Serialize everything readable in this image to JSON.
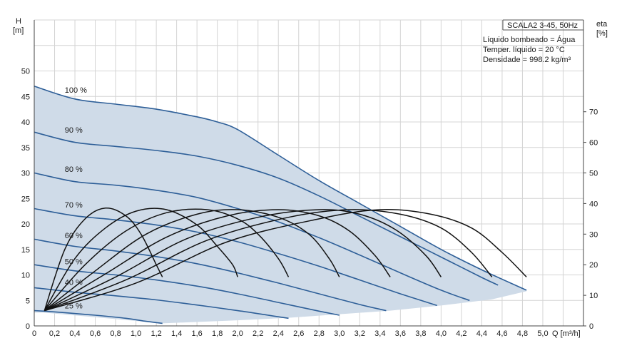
{
  "chart_data": {
    "type": "line",
    "title": "SCALA2 3-45, 50Hz",
    "notes": [
      "Líquido bombeado = Água",
      "Temper. líquido = 20 °C",
      "Densidade = 998.2 kg/m³"
    ],
    "xlabel": "Q [m³/h]",
    "ylabel_left": "H [m]",
    "ylabel_left_parts": [
      "H",
      "[m]"
    ],
    "ylabel_right": "eta [%]",
    "ylabel_right_parts": [
      "eta",
      "[%]"
    ],
    "xlim": [
      0,
      5.4
    ],
    "ylim_left": [
      0,
      60
    ],
    "ylim_right": [
      0,
      100
    ],
    "x_ticks": [
      "0",
      "0,2",
      "0,4",
      "0,6",
      "0,8",
      "1,0",
      "1,2",
      "1,4",
      "1,6",
      "1,8",
      "2,0",
      "2,2",
      "2,4",
      "2,6",
      "2,8",
      "3,0",
      "3,2",
      "3,4",
      "3,6",
      "3,8",
      "4,0",
      "4,2",
      "4,4",
      "4,6",
      "4,8",
      "5,0"
    ],
    "y_ticks_left": [
      "0",
      "5",
      "10",
      "15",
      "20",
      "25",
      "30",
      "35",
      "40",
      "45",
      "50"
    ],
    "y_ticks_right": [
      "0",
      "10",
      "20",
      "30",
      "40",
      "50",
      "60",
      "70"
    ],
    "grid": true,
    "colors": {
      "head": "#2e5f98",
      "efficiency": "#111111",
      "area": "#cfdbe8",
      "grid": "#d4d4d4"
    },
    "head_series": [
      {
        "name": "100 %",
        "label_at": [
          0.3,
          45.3
        ],
        "x": [
          0,
          0.4,
          0.8,
          1.2,
          1.6,
          1.8,
          2.0,
          2.4,
          2.8,
          3.2,
          3.6,
          4.0,
          4.4,
          4.84
        ],
        "y": [
          47,
          44.5,
          43.5,
          42.5,
          41,
          40,
          38.5,
          33.5,
          28.5,
          24,
          19.5,
          15,
          11,
          7
        ]
      },
      {
        "name": "90 %",
        "label_at": [
          0.3,
          37.5
        ],
        "x": [
          0,
          0.4,
          0.8,
          1.2,
          1.6,
          2.0,
          2.4,
          2.8,
          3.2,
          3.6,
          4.0,
          4.4,
          4.56
        ],
        "y": [
          38,
          36,
          35.2,
          34.4,
          33.3,
          31.5,
          29,
          25.5,
          21.5,
          17.5,
          13.5,
          9.5,
          8
        ]
      },
      {
        "name": "80 %",
        "label_at": [
          0.3,
          29.8
        ],
        "x": [
          0,
          0.4,
          0.8,
          1.2,
          1.6,
          2.0,
          2.4,
          2.8,
          3.2,
          3.6,
          4.0,
          4.28
        ],
        "y": [
          30,
          28.3,
          27.6,
          26.6,
          25.2,
          23,
          20.4,
          17.3,
          13.9,
          10.4,
          7,
          5
        ]
      },
      {
        "name": "70 %",
        "label_at": [
          0.3,
          22.8
        ],
        "x": [
          0,
          0.4,
          0.8,
          1.2,
          1.6,
          2.0,
          2.4,
          2.8,
          3.2,
          3.6,
          3.96
        ],
        "y": [
          23,
          21.6,
          20.8,
          19.8,
          18.4,
          16.5,
          14.2,
          11.7,
          9,
          6.3,
          4
        ]
      },
      {
        "name": "60 %",
        "label_at": [
          0.3,
          16.8
        ],
        "x": [
          0,
          0.4,
          0.8,
          1.2,
          1.6,
          2.0,
          2.4,
          2.8,
          3.2,
          3.46
        ],
        "y": [
          17,
          15.6,
          14.7,
          13.6,
          12.2,
          10.4,
          8.4,
          6.3,
          4.2,
          3
        ]
      },
      {
        "name": "50 %",
        "label_at": [
          0.3,
          11.7
        ],
        "x": [
          0,
          0.4,
          0.8,
          1.2,
          1.6,
          2.0,
          2.4,
          2.8,
          3.0
        ],
        "y": [
          12,
          10.8,
          10,
          9,
          7.8,
          6.3,
          4.6,
          2.9,
          2.1
        ]
      },
      {
        "name": "40 %",
        "label_at": [
          0.3,
          7.6
        ],
        "x": [
          0,
          0.4,
          0.8,
          1.2,
          1.6,
          2.0,
          2.3,
          2.5
        ],
        "y": [
          7.5,
          6.6,
          5.9,
          5.1,
          4.1,
          3.0,
          2.1,
          1.5
        ]
      },
      {
        "name": "25 %",
        "label_at": [
          0.3,
          3.0
        ],
        "x": [
          0,
          0.3,
          0.6,
          0.9,
          1.1,
          1.26
        ],
        "y": [
          3,
          2.6,
          2.1,
          1.5,
          0.9,
          0.5
        ]
      }
    ],
    "envelope_bottom": {
      "x": [
        0.1,
        1.26,
        2.0,
        2.5,
        3.0,
        3.5,
        4.0,
        4.5,
        4.84
      ],
      "y": [
        2.6,
        0.5,
        1.1,
        1.6,
        2.3,
        3.0,
        4.0,
        5.2,
        6.8
      ]
    },
    "efficiency_series": [
      {
        "x": [
          0.1,
          0.3,
          0.5,
          0.7,
          0.9,
          1.05,
          1.2,
          1.26
        ],
        "y": [
          5,
          25,
          35,
          38.5,
          36,
          30,
          20,
          16
        ]
      },
      {
        "x": [
          0.1,
          0.4,
          0.7,
          1.0,
          1.3,
          1.6,
          1.8,
          1.95,
          2.0
        ],
        "y": [
          5,
          22,
          32,
          37.5,
          38,
          33,
          26,
          20,
          16
        ]
      },
      {
        "x": [
          0.1,
          0.5,
          0.9,
          1.3,
          1.7,
          2.0,
          2.2,
          2.4,
          2.5
        ],
        "y": [
          5,
          20,
          31,
          37,
          38,
          35,
          30,
          22,
          16
        ]
      },
      {
        "x": [
          0.1,
          0.6,
          1.1,
          1.6,
          2.0,
          2.4,
          2.7,
          2.9,
          3.0
        ],
        "y": [
          5,
          18,
          30,
          36.5,
          38,
          35.5,
          30,
          22,
          16
        ]
      },
      {
        "x": [
          0.1,
          0.7,
          1.3,
          1.9,
          2.4,
          2.8,
          3.1,
          3.35,
          3.5
        ],
        "y": [
          5,
          17,
          29,
          36,
          38,
          36,
          31,
          23,
          16
        ]
      },
      {
        "x": [
          0.1,
          0.8,
          1.5,
          2.2,
          2.8,
          3.2,
          3.55,
          3.85,
          4.0
        ],
        "y": [
          5,
          16,
          28.5,
          35.5,
          38,
          36.5,
          31.5,
          23,
          16
        ]
      },
      {
        "x": [
          0.1,
          0.9,
          1.7,
          2.5,
          3.1,
          3.6,
          4.0,
          4.3,
          4.5
        ],
        "y": [
          5,
          15,
          28,
          35.5,
          38,
          36.5,
          32,
          24,
          16
        ]
      },
      {
        "x": [
          0.1,
          1.0,
          1.9,
          2.8,
          3.4,
          3.9,
          4.3,
          4.6,
          4.84
        ],
        "y": [
          5,
          14,
          27.5,
          35,
          38,
          36.5,
          32,
          24,
          16
        ]
      }
    ]
  }
}
